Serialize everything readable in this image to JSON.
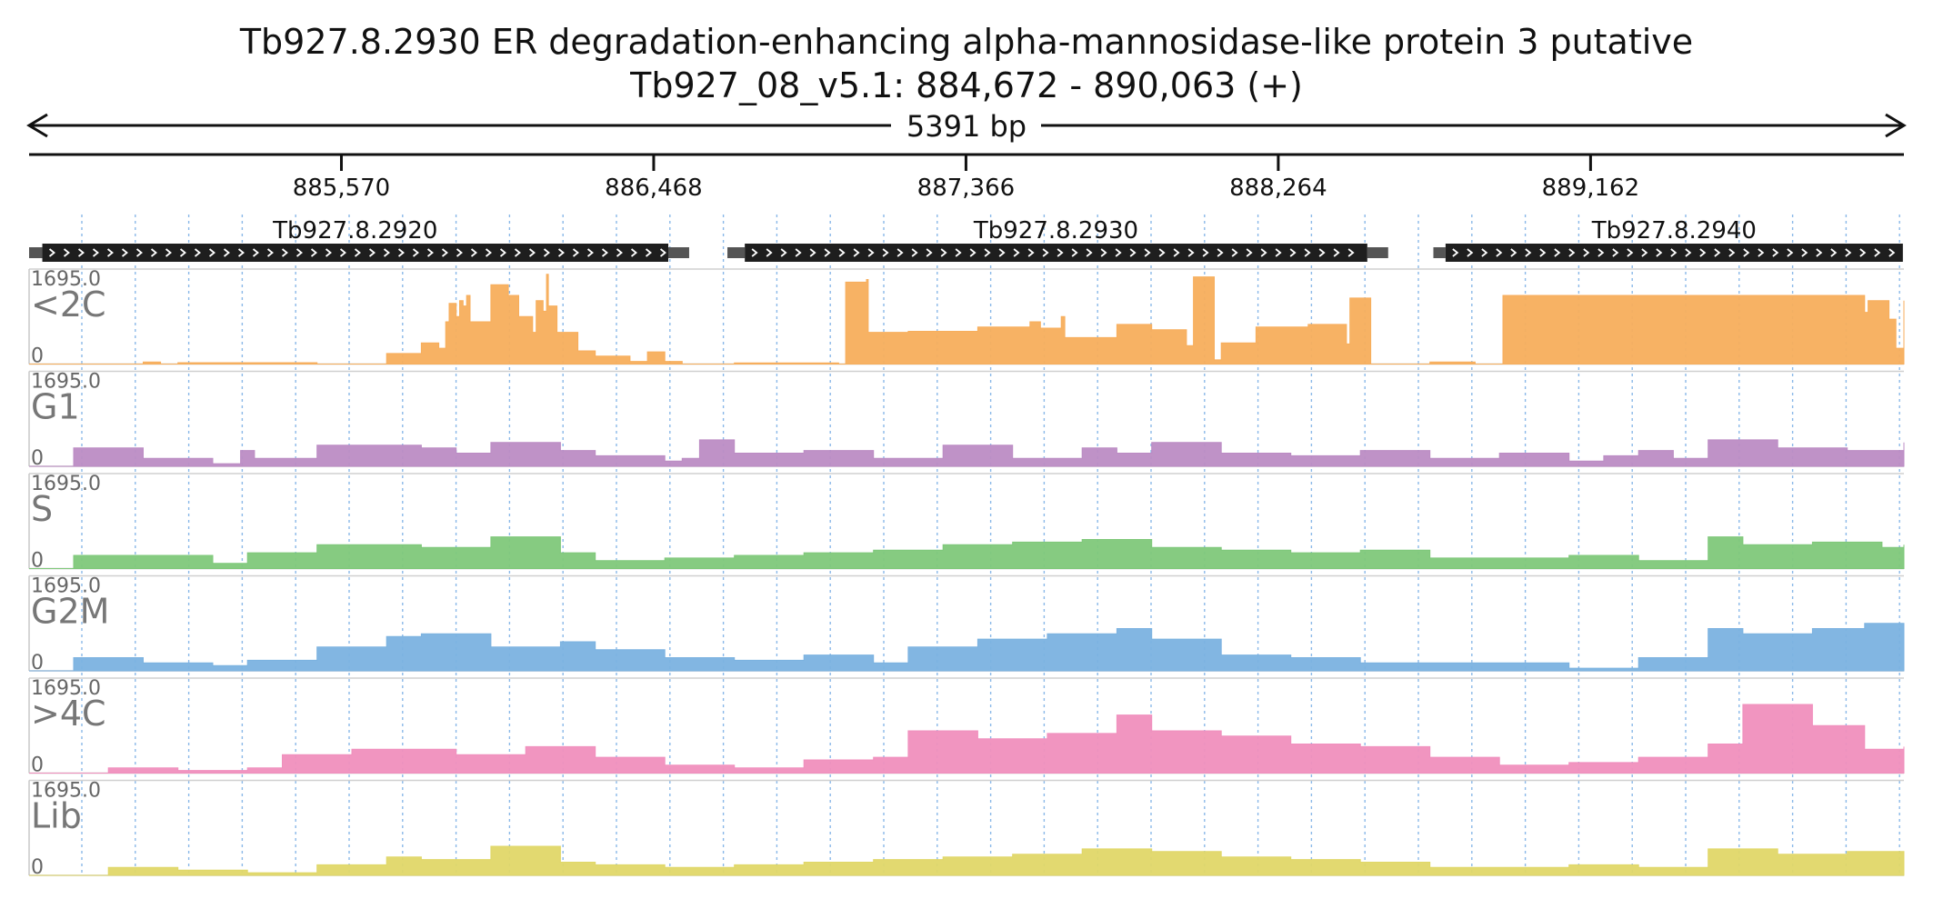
{
  "header": {
    "title": "Tb927.8.2930  ER degradation-enhancing alpha-mannosidase-like protein 3  putative",
    "subtitle": "Tb927_08_v5.1: 884,672 - 890,063 (+)",
    "span_label": "5391 bp"
  },
  "colors": {
    "<2C": "#F7AE5C",
    "G1": "#BC8CC4",
    "S": "#7FC87A",
    "G2M": "#7BB2E0",
    ">4C": "#F08FBD",
    "Lib": "#E0D768",
    "gene": "#1e1e1e",
    "gene_utr": "#555555",
    "grid": "#8ab8e8"
  },
  "chart_data": {
    "type": "area",
    "title": "Tb927.8.2930  ER degradation-enhancing alpha-mannosidase-like protein 3  putative",
    "chromosome": "Tb927_08_v5.1",
    "region_start": 884672,
    "region_end": 890063,
    "strand": "+",
    "length_bp": 5391,
    "xaxis": {
      "ticks": [
        885570,
        886468,
        887366,
        888264,
        889162
      ],
      "tick_labels": [
        "885,570",
        "886,468",
        "887,366",
        "888,264",
        "889,162"
      ]
    },
    "genes": [
      {
        "name": "Tb927.8.2920",
        "start": 884710,
        "end": 886510,
        "utr_end": 886570,
        "strand": "+"
      },
      {
        "name": "Tb927.8.2930",
        "start": 886730,
        "end": 888520,
        "utr_start": 886680,
        "utr_end": 888580,
        "strand": "+"
      },
      {
        "name": "Tb927.8.2940",
        "start": 888745,
        "end": 890060,
        "utr_start": 888710,
        "strand": "+"
      }
    ],
    "tracks": [
      {
        "name": "<2C",
        "ymin": 0,
        "ymax": 1695.0,
        "ymin_label": "0",
        "ymax_label": "1695.0",
        "x": [
          884672,
          884900,
          885000,
          885050,
          885100,
          885500,
          885700,
          885800,
          885850,
          885870,
          885880,
          885900,
          885910,
          885920,
          885930,
          885940,
          886000,
          886050,
          886080,
          886120,
          886130,
          886150,
          886160,
          886165,
          886180,
          886190,
          886250,
          886300,
          886400,
          886450,
          886500,
          886550,
          886600,
          886700,
          887000,
          887020,
          887080,
          887085,
          887200,
          887400,
          887550,
          887580,
          887640,
          887650,
          887800,
          887900,
          888000,
          888020,
          888040,
          888080,
          888100,
          888200,
          888350,
          888460,
          888470,
          888520,
          888530,
          888540,
          888700,
          888830,
          888900,
          888910,
          889500,
          889950,
          889960,
          890000,
          890020,
          890040,
          890063
        ],
        "y": [
          0,
          0,
          40,
          0,
          25,
          0,
          200,
          400,
          300,
          800,
          1150,
          900,
          1200,
          1100,
          1300,
          800,
          1500,
          1300,
          900,
          600,
          1200,
          1000,
          1700,
          1100,
          1100,
          600,
          250,
          150,
          50,
          230,
          50,
          0,
          0,
          20,
          0,
          1550,
          1600,
          600,
          620,
          700,
          800,
          680,
          900,
          500,
          750,
          650,
          350,
          1650,
          1650,
          80,
          400,
          700,
          750,
          380,
          1250,
          1250,
          0,
          0,
          40,
          0,
          0,
          1300,
          1300,
          980,
          1200,
          1200,
          850,
          300,
          1200
        ]
      },
      {
        "name": "G1",
        "ymin": 0,
        "ymax": 1695.0,
        "ymin_label": "0",
        "ymax_label": "1695.0",
        "x": [
          884672,
          884800,
          885000,
          885200,
          885280,
          885320,
          885500,
          885800,
          885900,
          886000,
          886200,
          886300,
          886500,
          886550,
          886600,
          886700,
          886900,
          887100,
          887300,
          887500,
          887700,
          887800,
          887900,
          888100,
          888300,
          888500,
          888700,
          888900,
          889100,
          889200,
          889300,
          889400,
          889500,
          889700,
          889900,
          890063
        ],
        "y": [
          0,
          350,
          150,
          50,
          300,
          150,
          400,
          350,
          250,
          450,
          300,
          200,
          100,
          150,
          500,
          250,
          300,
          150,
          400,
          150,
          350,
          250,
          450,
          250,
          200,
          300,
          150,
          250,
          100,
          200,
          300,
          150,
          500,
          350,
          300,
          450
        ]
      },
      {
        "name": "S",
        "ymin": 0,
        "ymax": 1695.0,
        "ymin_label": "0",
        "ymax_label": "1695.0",
        "x": [
          884672,
          884800,
          885000,
          885200,
          885300,
          885500,
          885800,
          886000,
          886200,
          886300,
          886500,
          886700,
          886900,
          887100,
          887300,
          887500,
          887700,
          887900,
          888100,
          888300,
          888500,
          888700,
          888900,
          889100,
          889300,
          889500,
          889600,
          889800,
          890000,
          890063
        ],
        "y": [
          0,
          250,
          250,
          100,
          300,
          450,
          400,
          600,
          300,
          150,
          200,
          250,
          300,
          350,
          450,
          500,
          550,
          400,
          350,
          300,
          350,
          200,
          200,
          250,
          150,
          600,
          450,
          500,
          400,
          450
        ]
      },
      {
        "name": "G2M",
        "ymin": 0,
        "ymax": 1695.0,
        "ymin_label": "0",
        "ymax_label": "1695.0",
        "x": [
          884672,
          884800,
          885000,
          885200,
          885300,
          885500,
          885700,
          885800,
          886000,
          886200,
          886300,
          886500,
          886700,
          886900,
          887100,
          887200,
          887400,
          887600,
          887800,
          887900,
          888100,
          888300,
          888500,
          888700,
          888900,
          889100,
          889300,
          889500,
          889600,
          889800,
          889950,
          890063
        ],
        "y": [
          0,
          250,
          150,
          100,
          200,
          450,
          650,
          700,
          450,
          550,
          400,
          250,
          200,
          300,
          150,
          450,
          600,
          700,
          800,
          600,
          300,
          250,
          150,
          150,
          150,
          50,
          250,
          800,
          700,
          800,
          900,
          850
        ]
      },
      {
        "name": ">4C",
        "ymin": 0,
        "ymax": 1695.0,
        "ymin_label": "0",
        "ymax_label": "1695.0",
        "x": [
          884672,
          884900,
          885100,
          885300,
          885400,
          885600,
          885900,
          886100,
          886300,
          886500,
          886700,
          886900,
          887100,
          887200,
          887400,
          887600,
          887800,
          887900,
          888100,
          888300,
          888500,
          888700,
          888900,
          889100,
          889300,
          889500,
          889600,
          889800,
          889950,
          890063
        ],
        "y": [
          0,
          100,
          50,
          100,
          350,
          450,
          350,
          500,
          300,
          150,
          100,
          250,
          300,
          800,
          650,
          750,
          1100,
          800,
          700,
          550,
          500,
          300,
          150,
          200,
          300,
          550,
          1300,
          900,
          450,
          500
        ]
      },
      {
        "name": "Lib",
        "ymin": 0,
        "ymax": 1695.0,
        "ymin_label": "0",
        "ymax_label": "1695.0",
        "x": [
          884672,
          884900,
          885100,
          885300,
          885500,
          885700,
          885800,
          886000,
          886200,
          886300,
          886500,
          886700,
          886900,
          887100,
          887300,
          887500,
          887700,
          887900,
          888100,
          888300,
          888500,
          888700,
          888900,
          889100,
          889300,
          889500,
          889700,
          889900,
          890063
        ],
        "y": [
          0,
          150,
          100,
          50,
          200,
          350,
          300,
          550,
          250,
          200,
          150,
          200,
          250,
          300,
          350,
          400,
          500,
          450,
          350,
          300,
          250,
          150,
          150,
          200,
          150,
          500,
          400,
          450,
          450
        ]
      }
    ]
  }
}
